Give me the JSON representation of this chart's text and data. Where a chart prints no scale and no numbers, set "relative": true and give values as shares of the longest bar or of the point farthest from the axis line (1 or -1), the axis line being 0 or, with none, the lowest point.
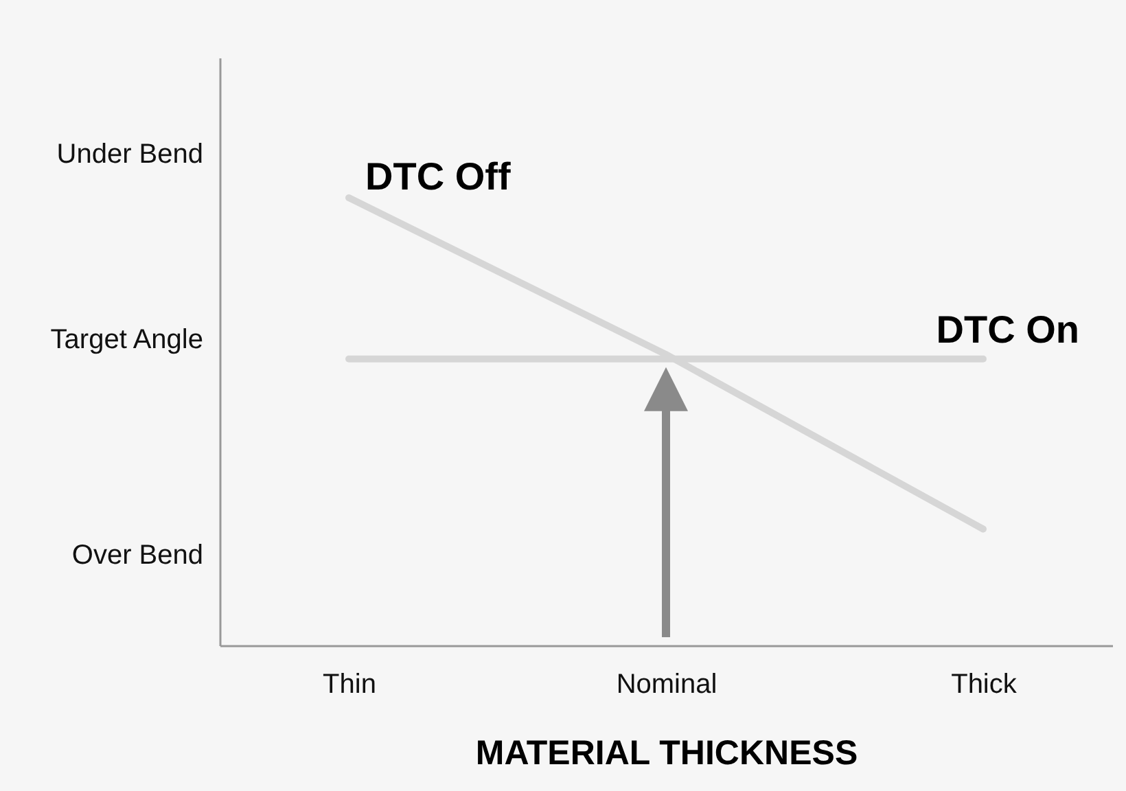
{
  "chart_data": {
    "type": "line",
    "xlabel": "MATERIAL THICKNESS",
    "relative": true,
    "categories": [
      "Thin",
      "Nominal",
      "Thick"
    ],
    "annotations": [
      "Under Bend",
      "Target Angle",
      "Over Bend"
    ],
    "series": [
      {
        "name": "DTC Off",
        "color": "#d6d6d6",
        "values": [
          1,
          0.65,
          0.26
        ]
      },
      {
        "name": "DTC On",
        "color": "#d6d6d6",
        "values": [
          0.64,
          0.64,
          0.64
        ]
      }
    ],
    "grid": false,
    "legend": false,
    "marker": "none",
    "line_style": "solid"
  }
}
